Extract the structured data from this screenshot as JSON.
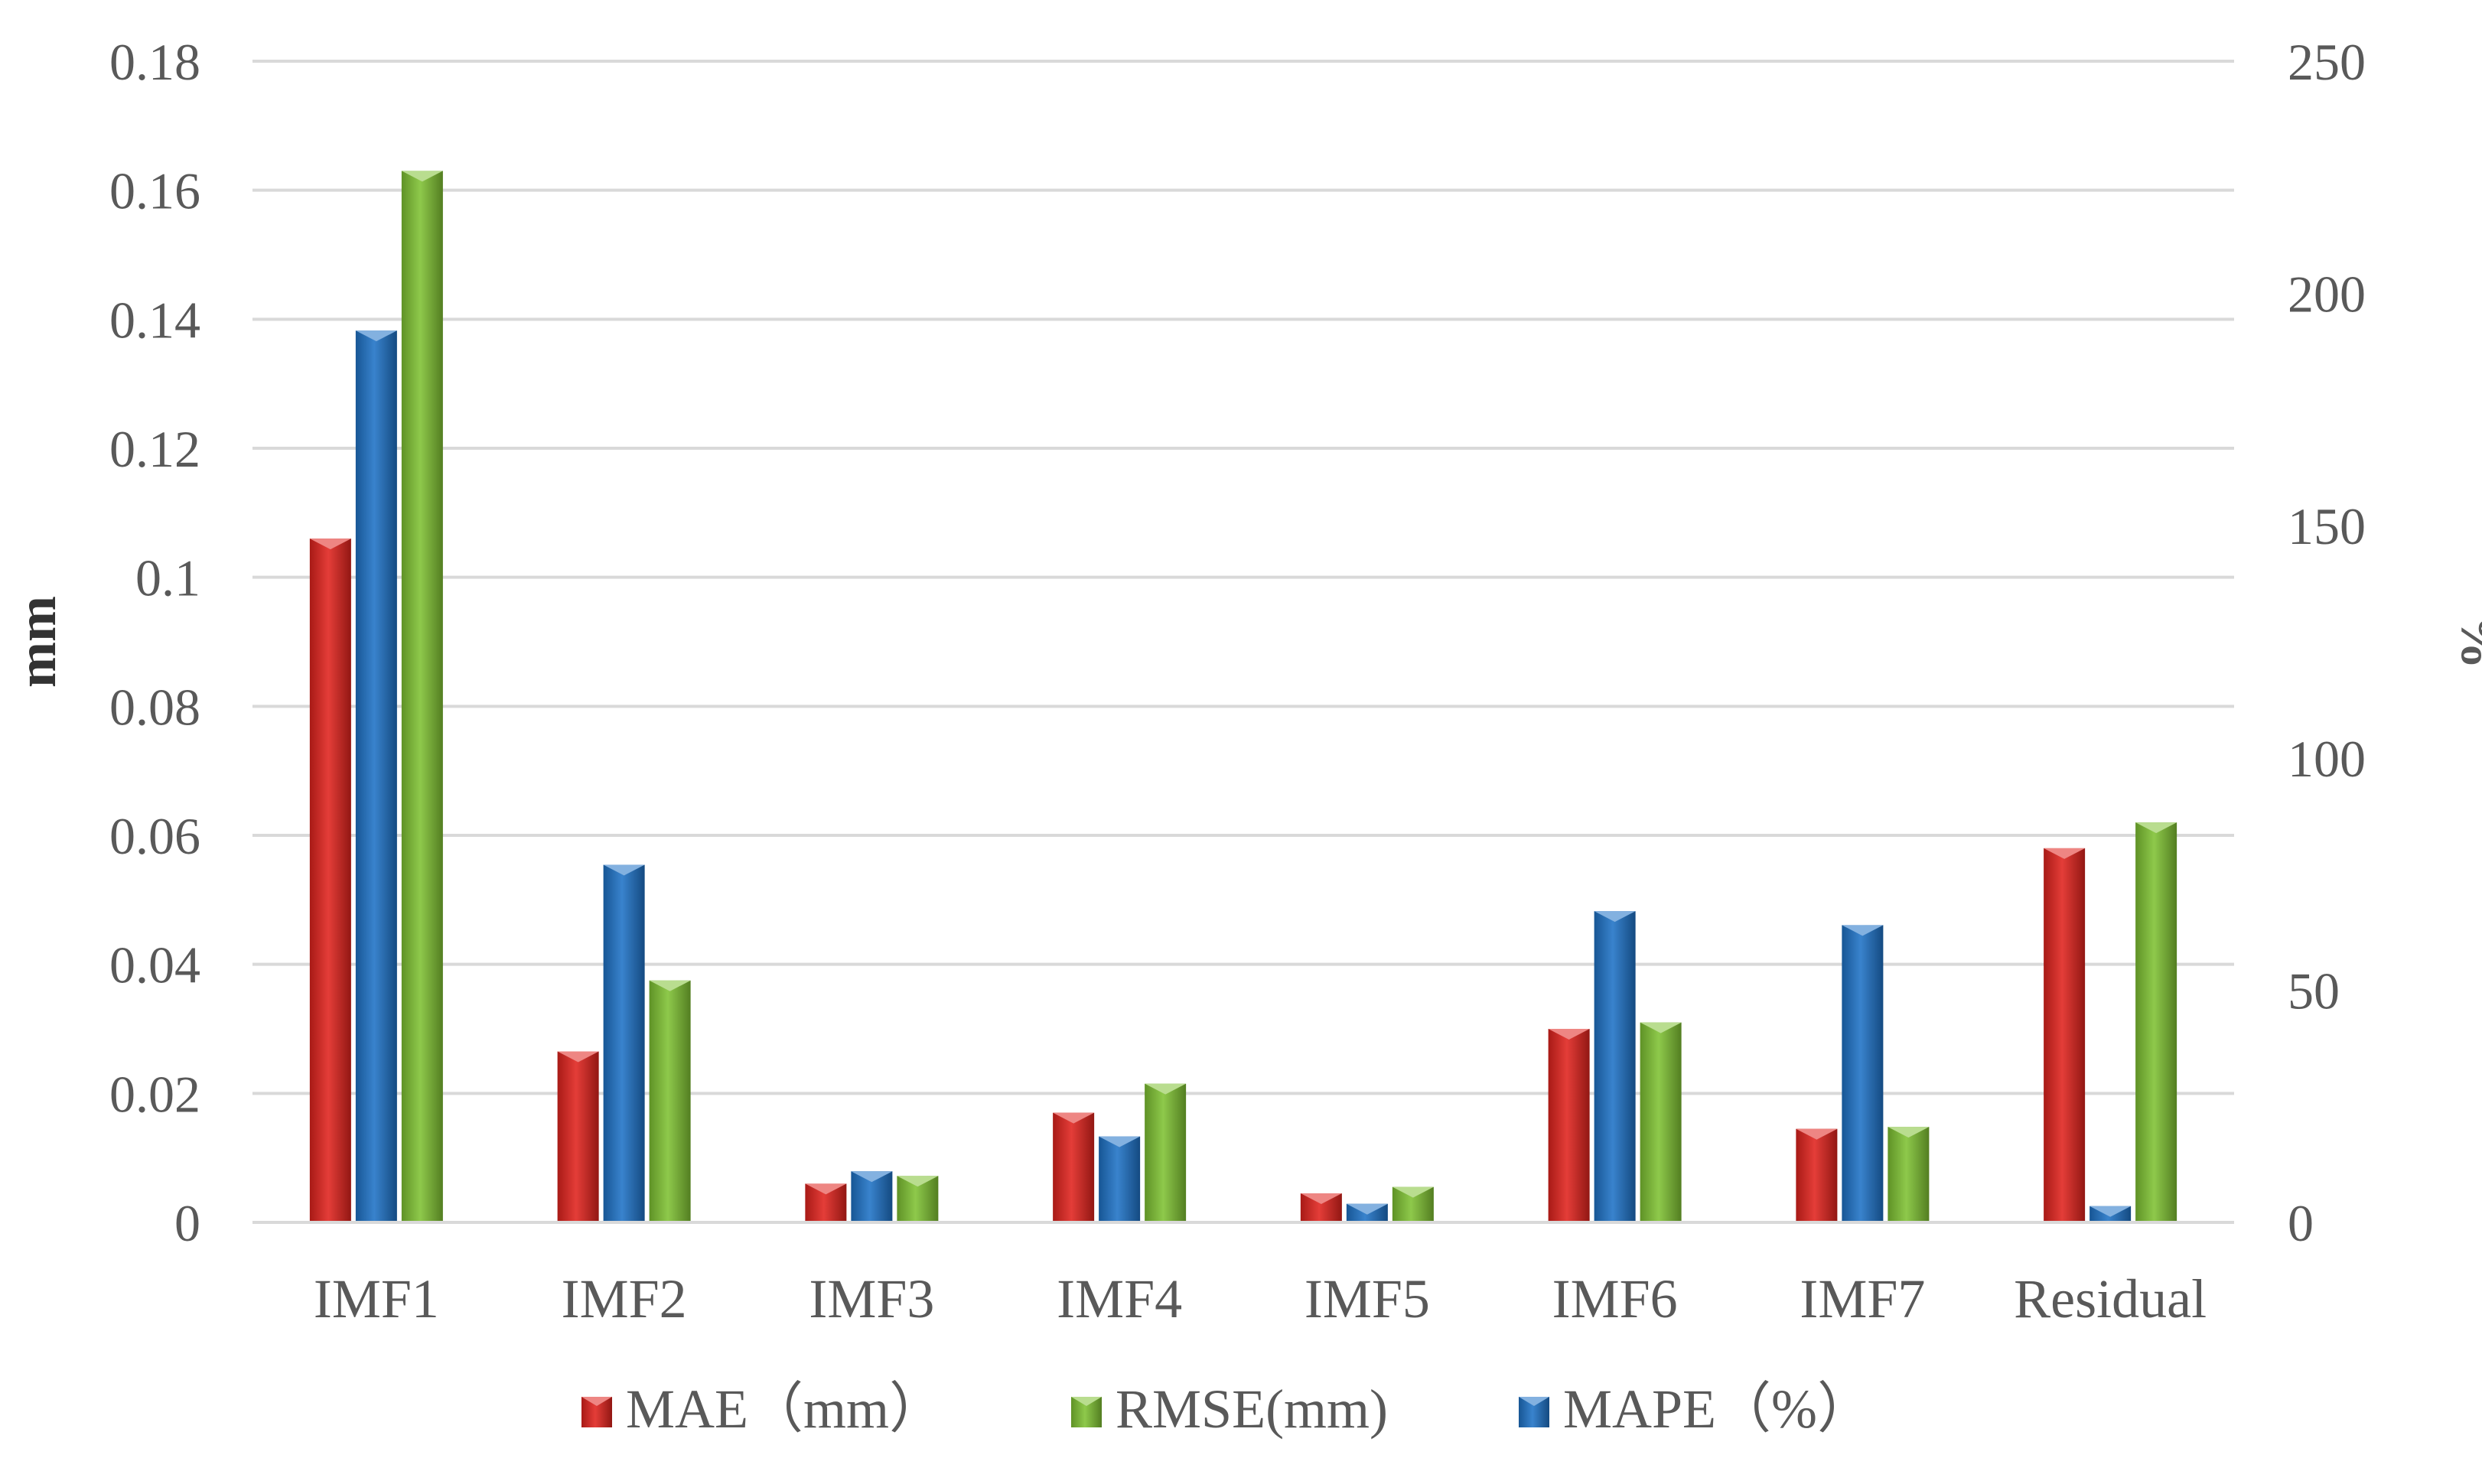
{
  "chart_data": {
    "type": "bar",
    "categories": [
      "IMF1",
      "IMF2",
      "IMF3",
      "IMF4",
      "IMF5",
      "IMF6",
      "IMF7",
      "Residual"
    ],
    "series": [
      {
        "name": "MAE（mm）",
        "axis": "left",
        "color": "#e0231d",
        "values": [
          0.106,
          0.0265,
          0.006,
          0.017,
          0.0045,
          0.03,
          0.0145,
          0.058
        ]
      },
      {
        "name": "MAPE（%）",
        "axis": "right",
        "color": "#1e72c6",
        "values": [
          192,
          77,
          11,
          18.5,
          4,
          67,
          64,
          3.5
        ]
      },
      {
        "name": "RMSE(mm)",
        "axis": "left",
        "color": "#7fc233",
        "values": [
          0.163,
          0.0375,
          0.0072,
          0.0215,
          0.0055,
          0.031,
          0.0148,
          0.062
        ]
      }
    ],
    "legend_order": [
      "MAE（mm）",
      "RMSE(mm)",
      "MAPE（%）"
    ],
    "ylabel": "mm",
    "ylabel_right": "%",
    "ylim": [
      0,
      0.18
    ],
    "ylim_right": [
      0,
      250
    ],
    "yticks": [
      "0",
      "0.02",
      "0.04",
      "0.06",
      "0.08",
      "0.1",
      "0.12",
      "0.14",
      "0.16",
      "0.18"
    ],
    "yticks_right": [
      "0",
      "50",
      "100",
      "150",
      "200",
      "250"
    ],
    "grid": true,
    "legend_position": "bottom"
  }
}
